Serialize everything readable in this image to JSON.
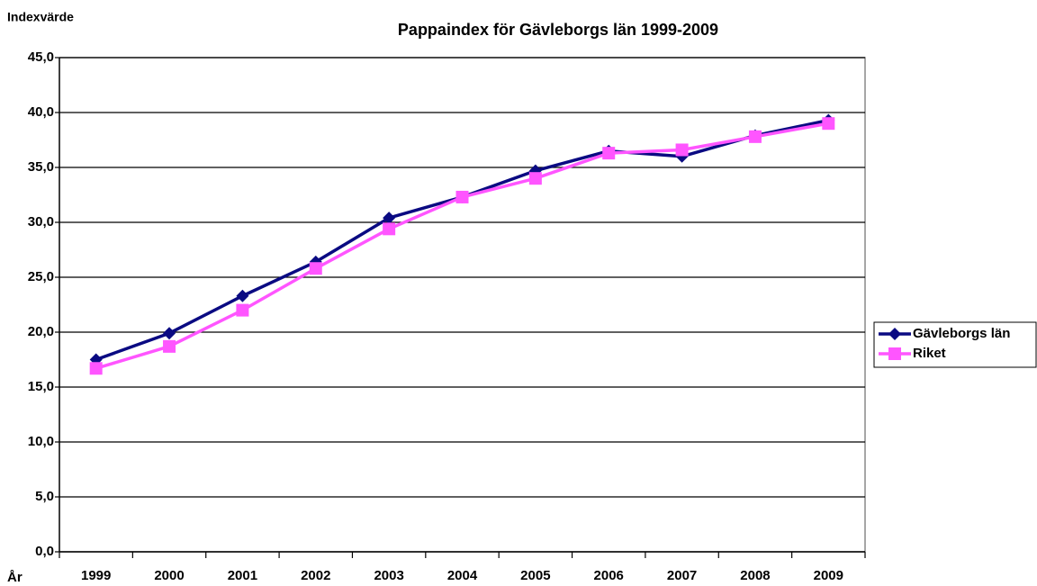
{
  "chart_data": {
    "type": "line",
    "title": "Pappaindex för Gävleborgs län 1999-2009",
    "y_axis_label": "Indexvärde",
    "x_axis_label": "År",
    "categories": [
      "1999",
      "2000",
      "2001",
      "2002",
      "2003",
      "2004",
      "2005",
      "2006",
      "2007",
      "2008",
      "2009"
    ],
    "series": [
      {
        "name": "Gävleborgs län",
        "color": "#0a0a82",
        "marker": "diamond",
        "values": [
          17.5,
          19.9,
          23.3,
          26.4,
          30.4,
          32.3,
          34.7,
          36.5,
          36.0,
          37.9,
          39.3
        ]
      },
      {
        "name": "Riket",
        "color": "#ff55ff",
        "marker": "square",
        "values": [
          16.7,
          18.7,
          22.0,
          25.8,
          29.4,
          32.3,
          34.0,
          36.3,
          36.6,
          37.8,
          39.0
        ]
      }
    ],
    "ylim": [
      0,
      45
    ],
    "yticks": [
      {
        "value": 0,
        "label": "0,0"
      },
      {
        "value": 5,
        "label": "5,0"
      },
      {
        "value": 10,
        "label": "10,0"
      },
      {
        "value": 15,
        "label": "15,0"
      },
      {
        "value": 20,
        "label": "20,0"
      },
      {
        "value": 25,
        "label": "25,0"
      },
      {
        "value": 30,
        "label": "30,0"
      },
      {
        "value": 35,
        "label": "35,0"
      },
      {
        "value": 40,
        "label": "40,0"
      },
      {
        "value": 45,
        "label": "45,0"
      }
    ],
    "grid": true,
    "legend": "right"
  }
}
